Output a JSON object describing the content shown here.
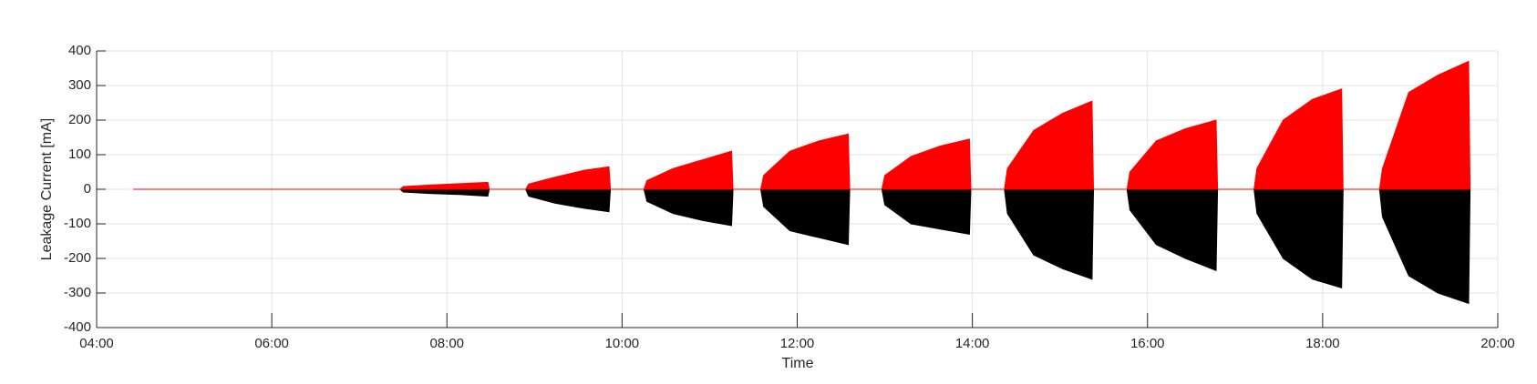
{
  "chart_data": {
    "type": "area",
    "xlabel": "Time",
    "ylabel": "Leakage Current [mA]",
    "xlim": [
      "04:00",
      "20:00"
    ],
    "xticks": [
      "04:00",
      "06:00",
      "08:00",
      "10:00",
      "12:00",
      "14:00",
      "16:00",
      "18:00",
      "20:00"
    ],
    "ylim": [
      -400,
      400
    ],
    "yticks": [
      -400,
      -300,
      -200,
      -100,
      0,
      100,
      200,
      300,
      400
    ],
    "grid": true,
    "x": [
      "04:25",
      "07:28",
      "07:30",
      "07:48",
      "08:08",
      "08:28",
      "08:29",
      "08:54",
      "08:56",
      "09:14",
      "09:34",
      "09:51",
      "09:52",
      "10:15",
      "10:17",
      "10:35",
      "10:55",
      "11:15",
      "11:16",
      "11:35",
      "11:37",
      "11:55",
      "12:15",
      "12:35",
      "12:36",
      "12:58",
      "13:00",
      "13:18",
      "13:38",
      "13:58",
      "13:59",
      "14:22",
      "14:24",
      "14:42",
      "15:02",
      "15:22",
      "15:23",
      "15:46",
      "15:48",
      "16:06",
      "16:26",
      "16:47",
      "16:48",
      "17:13",
      "17:15",
      "17:33",
      "17:53",
      "18:13",
      "18:14",
      "18:39",
      "18:41",
      "18:59",
      "19:19",
      "19:40",
      "19:41"
    ],
    "series": [
      {
        "color": "#000000",
        "values": [
          0,
          0,
          -8,
          -12,
          -15,
          -20,
          0,
          0,
          -20,
          -40,
          -55,
          -65,
          0,
          0,
          -35,
          -70,
          -90,
          -105,
          0,
          0,
          -50,
          -120,
          -140,
          -160,
          0,
          0,
          -45,
          -100,
          -115,
          -130,
          0,
          0,
          -70,
          -190,
          -230,
          -260,
          0,
          0,
          -60,
          -160,
          -200,
          -235,
          0,
          0,
          -70,
          -200,
          -260,
          -285,
          0,
          0,
          -80,
          -250,
          -300,
          -330,
          0
        ]
      },
      {
        "color": "#ff0000",
        "values": [
          0,
          0,
          8,
          12,
          16,
          20,
          0,
          0,
          15,
          35,
          55,
          65,
          0,
          0,
          25,
          60,
          85,
          110,
          0,
          0,
          40,
          110,
          140,
          160,
          0,
          0,
          40,
          95,
          125,
          145,
          0,
          0,
          60,
          170,
          220,
          255,
          0,
          0,
          50,
          140,
          175,
          200,
          0,
          0,
          60,
          200,
          260,
          290,
          0,
          0,
          60,
          280,
          330,
          370,
          0
        ]
      }
    ]
  }
}
